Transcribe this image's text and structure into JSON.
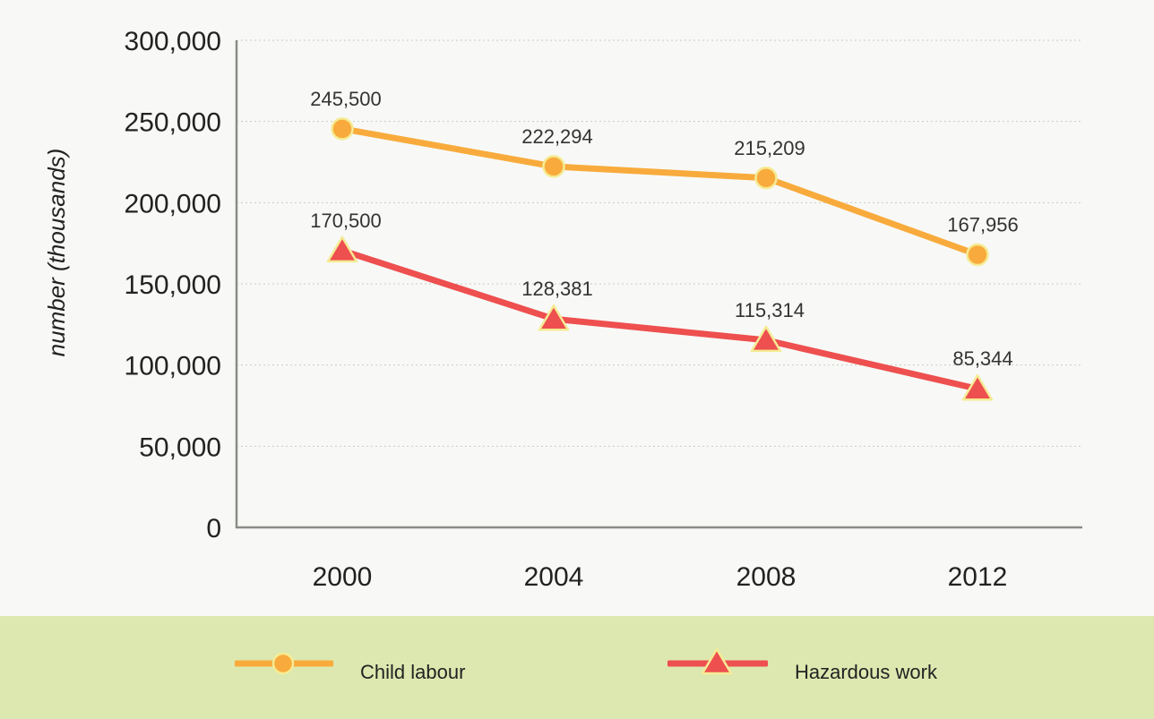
{
  "chart_data": {
    "type": "line",
    "title": "",
    "xlabel": "",
    "ylabel": "number (thousands)",
    "categories": [
      "2000",
      "2004",
      "2008",
      "2012"
    ],
    "ylim": [
      0,
      300000
    ],
    "yticks": [
      0,
      50000,
      100000,
      150000,
      200000,
      250000,
      300000
    ],
    "ytick_labels": [
      "0",
      "50,000",
      "100,000",
      "150,000",
      "200,000",
      "250,000",
      "300,000"
    ],
    "grid": "horizontal dotted",
    "legend_position": "bottom",
    "series": [
      {
        "name": "Child labour",
        "color": "#f8ab3c",
        "marker": "circle",
        "values": [
          245500,
          222294,
          215209,
          167956
        ],
        "labels": [
          "245,500",
          "222,294",
          "215,209",
          "167,956"
        ]
      },
      {
        "name": "Hazardous work",
        "color": "#ee4f4f",
        "marker": "triangle",
        "values": [
          170500,
          128381,
          115314,
          85344
        ],
        "labels": [
          "170,500",
          "128,381",
          "115,314",
          "85,344"
        ]
      }
    ]
  }
}
